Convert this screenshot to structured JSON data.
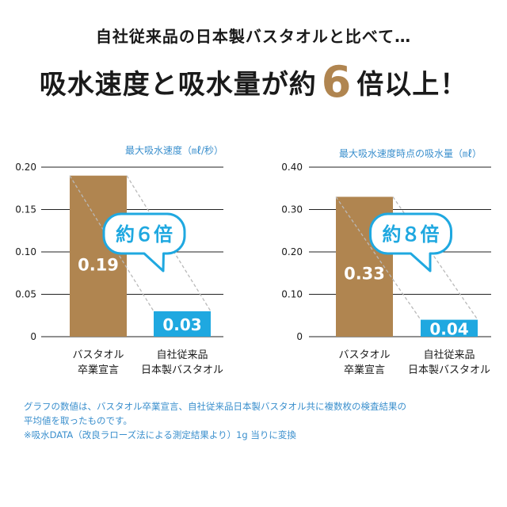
{
  "header": {
    "subtitle": "自社従来品の日本製バスタオルと比べて…",
    "headline_before": "吸水速度と吸水量が約",
    "headline_number": "6",
    "headline_after": "倍以上！"
  },
  "chart_data": [
    {
      "type": "bar",
      "ylabel": "最大吸水速度（㎖/秒）",
      "ylim": [
        0,
        0.2
      ],
      "yticks": [
        0,
        0.05,
        0.1,
        0.15,
        0.2
      ],
      "ytick_labels": [
        "0",
        "0.05",
        "0.10",
        "0.15",
        "0.20"
      ],
      "categories": [
        [
          "バスタオル",
          "卒業宣言"
        ],
        [
          "自社従来品",
          "日本製バスタオル"
        ]
      ],
      "values": [
        0.19,
        0.03
      ],
      "value_labels": [
        "0.19",
        "0.03"
      ],
      "bar_colors": [
        "#b08550",
        "#1fa8e0"
      ],
      "callout": "約６倍"
    },
    {
      "type": "bar",
      "ylabel": "最大吸水速度時点の吸水量（㎖）",
      "ylim": [
        0,
        0.4
      ],
      "yticks": [
        0,
        0.1,
        0.2,
        0.3,
        0.4
      ],
      "ytick_labels": [
        "0",
        "0.10",
        "0.20",
        "0.30",
        "0.40"
      ],
      "categories": [
        [
          "バスタオル",
          "卒業宣言"
        ],
        [
          "自社従来品",
          "日本製バスタオル"
        ]
      ],
      "values": [
        0.33,
        0.04
      ],
      "value_labels": [
        "0.33",
        "0.04"
      ],
      "bar_colors": [
        "#b08550",
        "#1fa8e0"
      ],
      "callout": "約８倍"
    }
  ],
  "notes": [
    "グラフの数値は、バスタオル卒業宣言、自社従来品日本製バスタオル共に複数枚の検査結果の",
    "平均値を取ったものです。",
    "※吸水DATA（改良ラローズ法による測定結果より）1g 当りに変換"
  ],
  "colors": {
    "accent_brown": "#b08550",
    "accent_blue": "#1fa8e0",
    "note_blue": "#3a8fcd"
  }
}
